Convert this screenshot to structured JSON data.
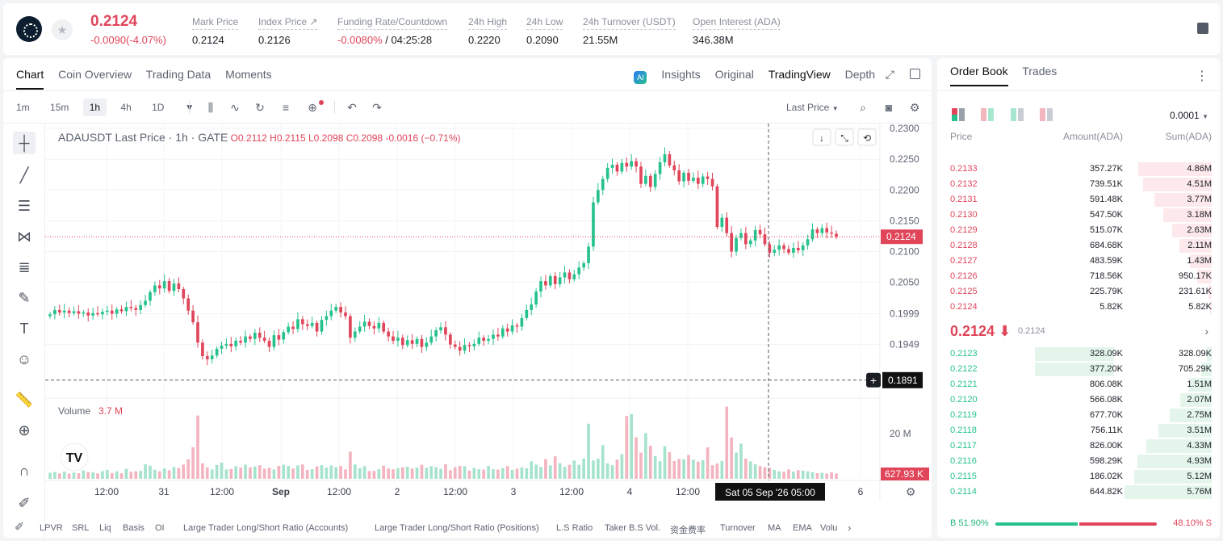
{
  "ticker": {
    "last_price": "0.2124",
    "change": "-0.0090(-4.07%)",
    "stats": [
      {
        "label": "Mark Price",
        "value": "0.2124"
      },
      {
        "label": "Index Price ↗",
        "value": "0.2126"
      },
      {
        "label": "Funding Rate/Countdown",
        "value_red": "-0.0080%",
        "value": " / 04:25:28"
      },
      {
        "label": "24h High",
        "value": "0.2220"
      },
      {
        "label": "24h Low",
        "value": "0.2090"
      },
      {
        "label": "24h Turnover (USDT)",
        "value": "21.55M"
      },
      {
        "label": "Open Interest (ADA)",
        "value": "346.38M"
      }
    ]
  },
  "chart_tabs": [
    "Chart",
    "Coin Overview",
    "Trading Data",
    "Moments"
  ],
  "chart_views": {
    "insights": "Insights",
    "original": "Original",
    "tradingview": "TradingView",
    "depth": "Depth"
  },
  "timeframes": [
    "1m",
    "15m",
    "1h",
    "4h",
    "1D"
  ],
  "price_type": "Last Price",
  "legend": {
    "symbol": "ADAUSDT Last Price · 1h · GATE",
    "o": "O0.2112",
    "h": "H0.2115",
    "l": "L0.2098",
    "c": "C0.2098",
    "chg": "-0.0016 (−0.71%)"
  },
  "volume_legend": {
    "label": "Volume",
    "value": "3.7 M"
  },
  "chart_data": {
    "type": "candlestick",
    "yticks": [
      0.23,
      0.225,
      0.22,
      0.215,
      0.21,
      0.205,
      0.1999,
      0.1949
    ],
    "ytick_labels": [
      "0.2300",
      "0.2250",
      "0.2200",
      "0.2150",
      "0.2100",
      "0.2050",
      "0.1999",
      "0.1949"
    ],
    "y_range": [
      0.1875,
      0.2308
    ],
    "current_price": "0.2124",
    "crosshair_price": "0.1891",
    "crosshair_time": "Sat 05 Sep '26   05:00",
    "volume_tick": "20 M",
    "volume_current": "627.93 K",
    "xticks": [
      "12:00",
      "31",
      "12:00",
      "Sep",
      "12:00",
      "2",
      "12:00",
      "3",
      "12:00",
      "4",
      "12:00",
      "6"
    ],
    "closes": [
      0.1998,
      0.2005,
      0.2001,
      0.2004,
      0.2,
      0.2003,
      0.1999,
      0.2001,
      0.1996,
      0.2,
      0.1998,
      0.2002,
      0.2004,
      0.1999,
      0.2006,
      0.2003,
      0.201,
      0.2008,
      0.2005,
      0.2013,
      0.202,
      0.2034,
      0.2045,
      0.204,
      0.2052,
      0.2036,
      0.2048,
      0.2039,
      0.2024,
      0.2004,
      0.1985,
      0.1952,
      0.193,
      0.1925,
      0.1931,
      0.1942,
      0.1947,
      0.195,
      0.1946,
      0.1955,
      0.1952,
      0.1962,
      0.1958,
      0.1968,
      0.196,
      0.1955,
      0.1945,
      0.1964,
      0.1957,
      0.1969,
      0.1978,
      0.1974,
      0.199,
      0.1982,
      0.1979,
      0.1984,
      0.197,
      0.1989,
      0.1995,
      0.2004,
      0.201,
      0.2001,
      0.1995,
      0.196,
      0.197,
      0.1978,
      0.1986,
      0.1979,
      0.1975,
      0.1984,
      0.197,
      0.1962,
      0.1955,
      0.196,
      0.1948,
      0.1956,
      0.195,
      0.1958,
      0.1945,
      0.1952,
      0.1962,
      0.1972,
      0.1977,
      0.1965,
      0.1949,
      0.1945,
      0.1939,
      0.1948,
      0.1946,
      0.195,
      0.196,
      0.1955,
      0.1958,
      0.1965,
      0.1962,
      0.1975,
      0.197,
      0.198,
      0.1978,
      0.1992,
      0.2005,
      0.2014,
      0.2035,
      0.2052,
      0.2045,
      0.206,
      0.2047,
      0.2058,
      0.2066,
      0.2055,
      0.2063,
      0.2074,
      0.2081,
      0.2108,
      0.218,
      0.22,
      0.2218,
      0.2236,
      0.2241,
      0.223,
      0.2244,
      0.2238,
      0.2247,
      0.2238,
      0.221,
      0.2223,
      0.2205,
      0.2226,
      0.2245,
      0.2258,
      0.224,
      0.2232,
      0.2214,
      0.2228,
      0.2215,
      0.222,
      0.221,
      0.2222,
      0.2218,
      0.2206,
      0.214,
      0.2155,
      0.213,
      0.21,
      0.2122,
      0.213,
      0.2112,
      0.2118,
      0.2135,
      0.2128,
      0.2112,
      0.2098,
      0.2103,
      0.211,
      0.2104,
      0.2098,
      0.2106,
      0.2102,
      0.211,
      0.212,
      0.2136,
      0.213,
      0.2138,
      0.2131,
      0.2129,
      0.2124
    ],
    "volumes": [
      2.6,
      2.9,
      2.3,
      3.1,
      2.2,
      2.7,
      2.4,
      3.6,
      2.9,
      2.8,
      2.3,
      3.3,
      3.8,
      2.5,
      3.2,
      2.4,
      4.3,
      3.0,
      3.2,
      3.4,
      6.2,
      5.6,
      3.9,
      3.2,
      4.4,
      3.7,
      5.0,
      4.6,
      6.1,
      8.3,
      13.5,
      27.0,
      6.6,
      4.8,
      4.0,
      5.9,
      6.9,
      4.0,
      4.2,
      5.4,
      4.8,
      6.0,
      4.9,
      5.3,
      5.8,
      4.3,
      4.7,
      4.0,
      5.5,
      6.0,
      5.5,
      4.4,
      5.7,
      6.1,
      3.8,
      4.1,
      5.3,
      5.8,
      4.8,
      5.7,
      4.9,
      5.5,
      4.0,
      11.6,
      6.1,
      4.6,
      5.4,
      3.3,
      3.4,
      4.1,
      5.6,
      4.4,
      4.1,
      4.6,
      4.9,
      5.2,
      4.4,
      4.8,
      6.0,
      4.7,
      5.4,
      5.0,
      4.3,
      6.2,
      3.7,
      4.9,
      5.5,
      5.4,
      3.5,
      4.7,
      4.1,
      3.9,
      5.5,
      4.1,
      3.9,
      4.6,
      5.4,
      3.8,
      4.3,
      4.9,
      4.5,
      7.5,
      6.1,
      5.0,
      8.4,
      5.7,
      9.6,
      6.7,
      5.1,
      6.0,
      7.8,
      6.0,
      8.6,
      23.5,
      7.8,
      8.6,
      14.4,
      6.6,
      5.8,
      8.2,
      10.5,
      26.8,
      27.6,
      17.7,
      11.2,
      19.5,
      14.1,
      9.7,
      7.5,
      13.9,
      11.4,
      7.6,
      8.5,
      8.4,
      10.2,
      8.2,
      7.3,
      8.0,
      13.4,
      5.8,
      6.5,
      7.6,
      30.8,
      17.6,
      11.2,
      15.0,
      8.6,
      7.4,
      6.2,
      5.5,
      5.0,
      4.7,
      3.8,
      3.2,
      3.0,
      4.0,
      3.1,
      3.7,
      3.5,
      3.2,
      2.8,
      2.4,
      2.6,
      2.2,
      2.8,
      2.3,
      2.0,
      2.5,
      1.2
    ]
  },
  "indicators": [
    "LPVR",
    "SRL",
    "Liq",
    "Basis",
    "OI",
    "Large Trader Long/Short Ratio (Accounts)",
    "Large Trader Long/Short Ratio (Positions)",
    "L.S Ratio",
    "Taker B.S Vol.",
    "资金费率",
    "Turnover",
    "MA",
    "EMA",
    "Volu"
  ],
  "book": {
    "tabs": [
      "Order Book",
      "Trades"
    ],
    "precision": "0.0001",
    "headers": [
      "Price",
      "Amount(ADA)",
      "Sum(ADA)"
    ],
    "asks": [
      {
        "p": "0.2133",
        "a": "357.27K",
        "s": "4.86M",
        "d": 4.86
      },
      {
        "p": "0.2132",
        "a": "739.51K",
        "s": "4.51M",
        "d": 4.51
      },
      {
        "p": "0.2131",
        "a": "591.48K",
        "s": "3.77M",
        "d": 3.77
      },
      {
        "p": "0.2130",
        "a": "547.50K",
        "s": "3.18M",
        "d": 3.18
      },
      {
        "p": "0.2129",
        "a": "515.07K",
        "s": "2.63M",
        "d": 2.63
      },
      {
        "p": "0.2128",
        "a": "684.68K",
        "s": "2.11M",
        "d": 2.11
      },
      {
        "p": "0.2127",
        "a": "483.59K",
        "s": "1.43M",
        "d": 1.43
      },
      {
        "p": "0.2126",
        "a": "718.56K",
        "s": "950.17K",
        "d": 0.95
      },
      {
        "p": "0.2125",
        "a": "225.79K",
        "s": "231.61K",
        "d": 0.23
      },
      {
        "p": "0.2124",
        "a": "5.82K",
        "s": "5.82K",
        "d": 0.006
      }
    ],
    "mid": "0.2124 ⬇",
    "mid_sub": "0.2124",
    "bids": [
      {
        "p": "0.2123",
        "a": "328.09K",
        "s": "328.09K",
        "d": 0.33,
        "hl": 1
      },
      {
        "p": "0.2122",
        "a": "377.20K",
        "s": "705.29K",
        "d": 0.71,
        "hl": 1
      },
      {
        "p": "0.2121",
        "a": "806.08K",
        "s": "1.51M",
        "d": 1.51
      },
      {
        "p": "0.2120",
        "a": "566.08K",
        "s": "2.07M",
        "d": 2.07
      },
      {
        "p": "0.2119",
        "a": "677.70K",
        "s": "2.75M",
        "d": 2.75
      },
      {
        "p": "0.2118",
        "a": "756.11K",
        "s": "3.51M",
        "d": 3.51
      },
      {
        "p": "0.2117",
        "a": "826.00K",
        "s": "4.33M",
        "d": 4.33
      },
      {
        "p": "0.2116",
        "a": "598.29K",
        "s": "4.93M",
        "d": 4.93
      },
      {
        "p": "0.2115",
        "a": "186.02K",
        "s": "5.12M",
        "d": 5.12
      },
      {
        "p": "0.2114",
        "a": "644.82K",
        "s": "5.76M",
        "d": 5.76
      }
    ],
    "buy_ratio": "B 51.90%",
    "sell_ratio": "48.10% S",
    "buy_pct": 51.9
  },
  "colors": {
    "up": "#26c28c",
    "down": "#e0455a"
  }
}
